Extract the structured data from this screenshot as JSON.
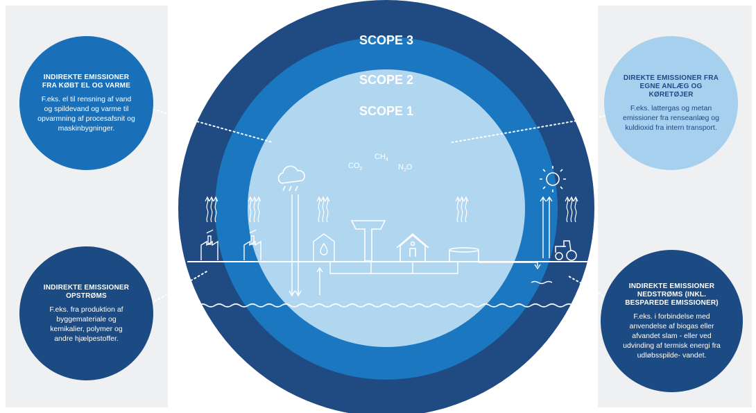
{
  "scopes": {
    "scope3": "SCOPE 3",
    "scope2": "SCOPE 2",
    "scope1": "SCOPE 1"
  },
  "gases": {
    "co2": "CO",
    "co2_sub": "2",
    "ch4": "CH",
    "ch4_sub": "4",
    "n2o": "N",
    "n2o_sub": "2",
    "n2o_tail": "O"
  },
  "bubbles": {
    "top_left": {
      "title": "INDIREKTE EMISSIONER FRA KØBT EL OG VARME",
      "text": "F.eks. el til rensning af vand og spildevand og varme til opvarmning af procesafsnit og maskinbygninger."
    },
    "top_right": {
      "title": "DIREKTE EMISSIONER FRA EGNE ANLÆG OG KØRETØJER",
      "text": "F.eks. lattergas og metan emissioner fra renseanlæg og kuldioxid fra intern transport."
    },
    "bottom_left": {
      "title": "INDIREKTE EMISSIONER OPSTRØMS",
      "text": "F.eks. fra produktion af byggemateriale og kemikalier, polymer og andre hjælpestoffer."
    },
    "bottom_right": {
      "title": "INDIREKTE EMISSIONER NEDSTRØMS (INKL. BESPAREDE EMISSIONER)",
      "text": "F.eks. i forbindelse med anvendelse af biogas eller afvandet slam - eller ved udvinding af termisk energi fra udløbsspilde- vandet."
    }
  },
  "colors": {
    "scope3": "#1f4a82",
    "scope2": "#1b77c0",
    "scope1": "#b1d7f0",
    "bubble_mid": "#1a70b8",
    "bubble_light": "#a7d0ee",
    "bubble_dark": "#1c4a82",
    "panel": "#eef0f1"
  },
  "icons": [
    "cloud-rain-icon",
    "sun-icon",
    "factory-icon",
    "tractor-icon",
    "house-icon",
    "water-tank-icon",
    "water-tower-icon",
    "heat-arrows-icon"
  ]
}
